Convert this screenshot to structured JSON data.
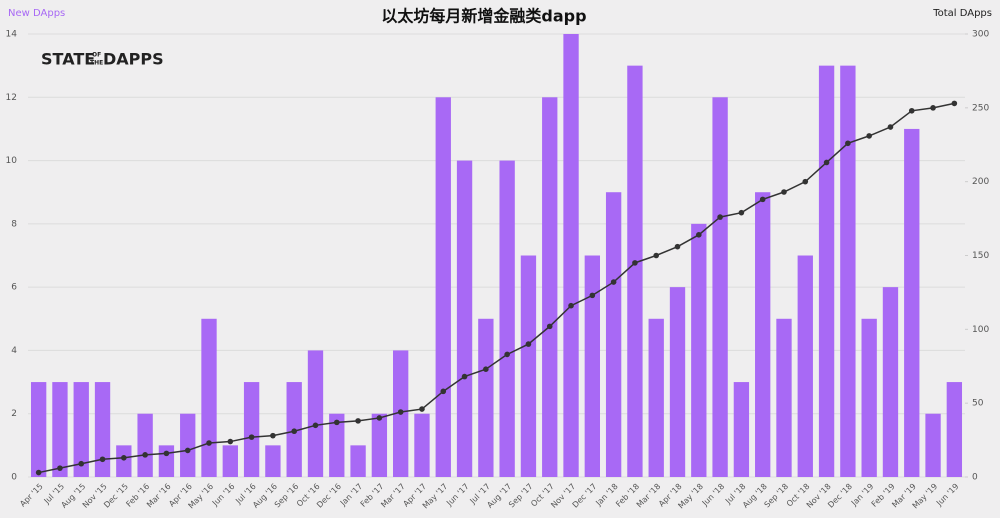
{
  "chart_data": {
    "type": "bar",
    "title": "以太坊每月新增金融类dapp",
    "logo": [
      "STATE",
      "OF",
      "THE",
      "DAPPS"
    ],
    "categories": [
      "Apr '15",
      "Jul '15",
      "Aug '15",
      "Nov '15",
      "Dec '15",
      "Feb '16",
      "Mar '16",
      "Apr '16",
      "May '16",
      "Jun '16",
      "Jul '16",
      "Aug '16",
      "Sep '16",
      "Oct '16",
      "Dec '16",
      "Jan '17",
      "Feb '17",
      "Mar '17",
      "Apr '17",
      "May '17",
      "Jun '17",
      "Jul '17",
      "Aug '17",
      "Sep '17",
      "Oct '17",
      "Nov '17",
      "Dec '17",
      "Jan '18",
      "Feb '18",
      "Mar '18",
      "Apr '18",
      "May '18",
      "Jun '18",
      "Jul '18",
      "Aug '18",
      "Sep '18",
      "Oct '18",
      "Nov '18",
      "Dec '18",
      "Jan '19",
      "Feb '19",
      "Mar '19",
      "May '19",
      "Jun '19"
    ],
    "series": [
      {
        "name": "New DApps",
        "color": "#a869f5",
        "values": [
          3,
          3,
          3,
          3,
          1,
          2,
          1,
          2,
          5,
          1,
          3,
          1,
          3,
          4,
          2,
          1,
          2,
          4,
          2,
          12,
          10,
          5,
          10,
          7,
          12,
          14,
          7,
          9,
          13,
          5,
          6,
          8,
          12,
          3,
          9,
          5,
          7,
          13,
          13,
          5,
          6,
          11,
          2,
          3
        ]
      },
      {
        "name": "Total DApps",
        "color": "#333333",
        "axis": "y2",
        "values": [
          3,
          6,
          9,
          12,
          13,
          15,
          16,
          18,
          23,
          24,
          27,
          28,
          31,
          35,
          37,
          38,
          40,
          44,
          46,
          58,
          68,
          73,
          83,
          90,
          102,
          116,
          123,
          132,
          145,
          150,
          156,
          164,
          176,
          179,
          188,
          193,
          200,
          213,
          226,
          231,
          237,
          248,
          250,
          253
        ]
      }
    ],
    "ylim": [
      0,
      14
    ],
    "yticks": [
      0,
      2,
      4,
      6,
      8,
      10,
      12,
      14
    ],
    "y2lim": [
      0,
      300
    ],
    "y2ticks": [
      0,
      50,
      100,
      150,
      200,
      250,
      300
    ],
    "grid": true
  }
}
